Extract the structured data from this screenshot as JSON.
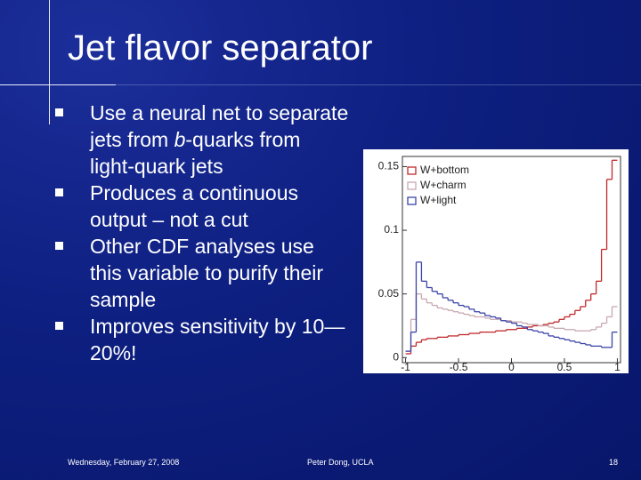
{
  "header": {
    "title": "Jet flavor separator"
  },
  "bullets": [
    [
      "Use a neural net to separate jets from ",
      "b",
      "-quarks from light-quark jets"
    ],
    [
      "Produces a continuous output – not a cut"
    ],
    [
      "Other CDF analyses use this variable to purify their sample"
    ],
    [
      "Improves sensitivity by 10—20%!"
    ]
  ],
  "footer": {
    "date": "Wednesday, February 27, 2008",
    "author": "Peter Dong, UCLA",
    "page": "18"
  },
  "chart_data": {
    "type": "step-histogram",
    "bins": [
      -1,
      -0.95,
      -0.9,
      -0.85,
      -0.8,
      -0.75,
      -0.7,
      -0.65,
      -0.6,
      -0.55,
      -0.5,
      -0.45,
      -0.4,
      -0.35,
      -0.3,
      -0.25,
      -0.2,
      -0.15,
      -0.1,
      -0.05,
      0,
      0.05,
      0.1,
      0.15,
      0.2,
      0.25,
      0.3,
      0.35,
      0.4,
      0.45,
      0.5,
      0.55,
      0.6,
      0.65,
      0.7,
      0.75,
      0.8,
      0.85,
      0.9,
      0.95,
      1
    ],
    "series": [
      {
        "name": "W+bottom",
        "color": "#c0282a",
        "values": [
          0.003,
          0.009,
          0.012,
          0.014,
          0.015,
          0.015,
          0.016,
          0.016,
          0.017,
          0.017,
          0.018,
          0.018,
          0.019,
          0.019,
          0.02,
          0.02,
          0.02,
          0.021,
          0.021,
          0.022,
          0.022,
          0.023,
          0.023,
          0.024,
          0.025,
          0.025,
          0.026,
          0.027,
          0.028,
          0.03,
          0.032,
          0.034,
          0.037,
          0.04,
          0.045,
          0.05,
          0.06,
          0.085,
          0.14,
          0.155
        ]
      },
      {
        "name": "W+charm",
        "color": "#c8a8b0",
        "values": [
          0.005,
          0.03,
          0.05,
          0.046,
          0.043,
          0.041,
          0.039,
          0.038,
          0.037,
          0.036,
          0.035,
          0.034,
          0.033,
          0.032,
          0.032,
          0.031,
          0.03,
          0.03,
          0.029,
          0.029,
          0.028,
          0.028,
          0.027,
          0.026,
          0.026,
          0.025,
          0.025,
          0.024,
          0.023,
          0.023,
          0.022,
          0.022,
          0.021,
          0.021,
          0.021,
          0.022,
          0.024,
          0.027,
          0.032,
          0.04
        ]
      },
      {
        "name": "W+light",
        "color": "#3a44a8",
        "values": [
          0.005,
          0.02,
          0.075,
          0.06,
          0.055,
          0.052,
          0.05,
          0.047,
          0.045,
          0.043,
          0.041,
          0.04,
          0.038,
          0.036,
          0.035,
          0.033,
          0.032,
          0.031,
          0.029,
          0.028,
          0.027,
          0.025,
          0.024,
          0.022,
          0.021,
          0.02,
          0.019,
          0.017,
          0.016,
          0.015,
          0.014,
          0.013,
          0.012,
          0.011,
          0.01,
          0.009,
          0.009,
          0.008,
          0.008,
          0.02
        ]
      }
    ],
    "xlim": [
      -1.03,
      1.03
    ],
    "ylim": [
      -0.004,
      0.158
    ],
    "xticks": [
      -1,
      -0.5,
      0,
      0.5,
      1
    ],
    "yticks": [
      0,
      0.05,
      0.1,
      0.15
    ],
    "legend": "upper-left"
  }
}
